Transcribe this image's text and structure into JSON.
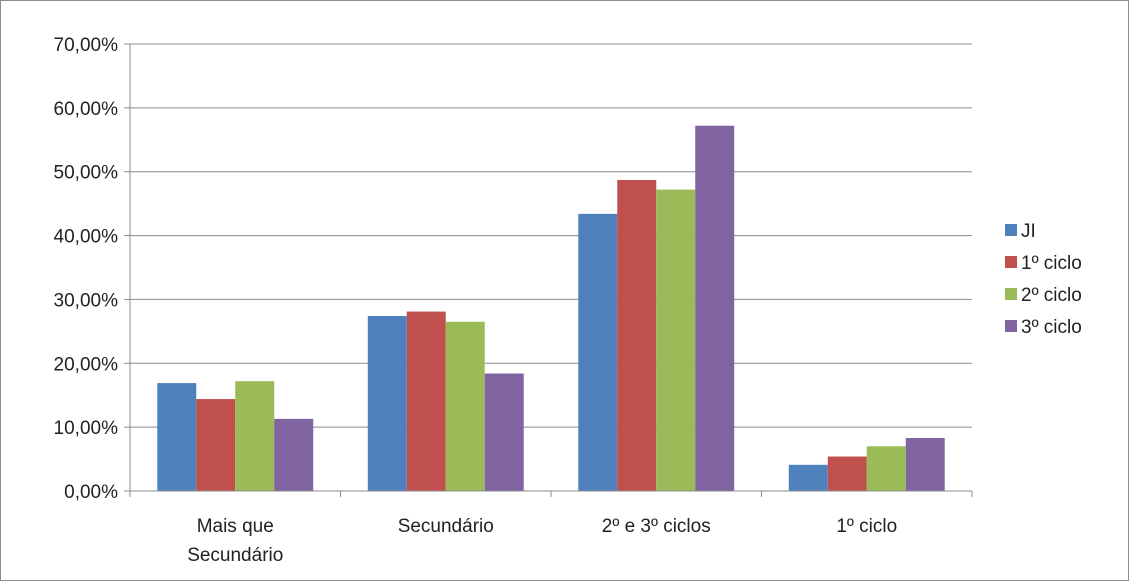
{
  "chart_data": {
    "type": "bar",
    "categories": [
      [
        "Mais que",
        "Secundário"
      ],
      [
        "Secundário"
      ],
      [
        "2º e 3º ciclos"
      ],
      [
        "1º ciclo"
      ]
    ],
    "series": [
      {
        "name": "JI",
        "color": "#4f81bd",
        "values": [
          16.9,
          27.4,
          43.4,
          4.1
        ]
      },
      {
        "name": "1º ciclo",
        "color": "#c0504d",
        "values": [
          14.4,
          28.1,
          48.7,
          5.4
        ]
      },
      {
        "name": "2º ciclo",
        "color": "#9bbb59",
        "values": [
          17.2,
          26.5,
          47.2,
          7.0
        ]
      },
      {
        "name": "3º ciclo",
        "color": "#8064a2",
        "values": [
          11.3,
          18.4,
          57.2,
          8.3
        ]
      }
    ],
    "ylim": [
      0,
      70
    ],
    "yticks": [
      0,
      10,
      20,
      30,
      40,
      50,
      60,
      70
    ],
    "ytick_labels": [
      "0,00%",
      "10,00%",
      "20,00%",
      "30,00%",
      "40,00%",
      "50,00%",
      "60,00%",
      "70,00%"
    ],
    "grid": true,
    "legend": "right",
    "gridline_color": "#8c8c8c"
  }
}
